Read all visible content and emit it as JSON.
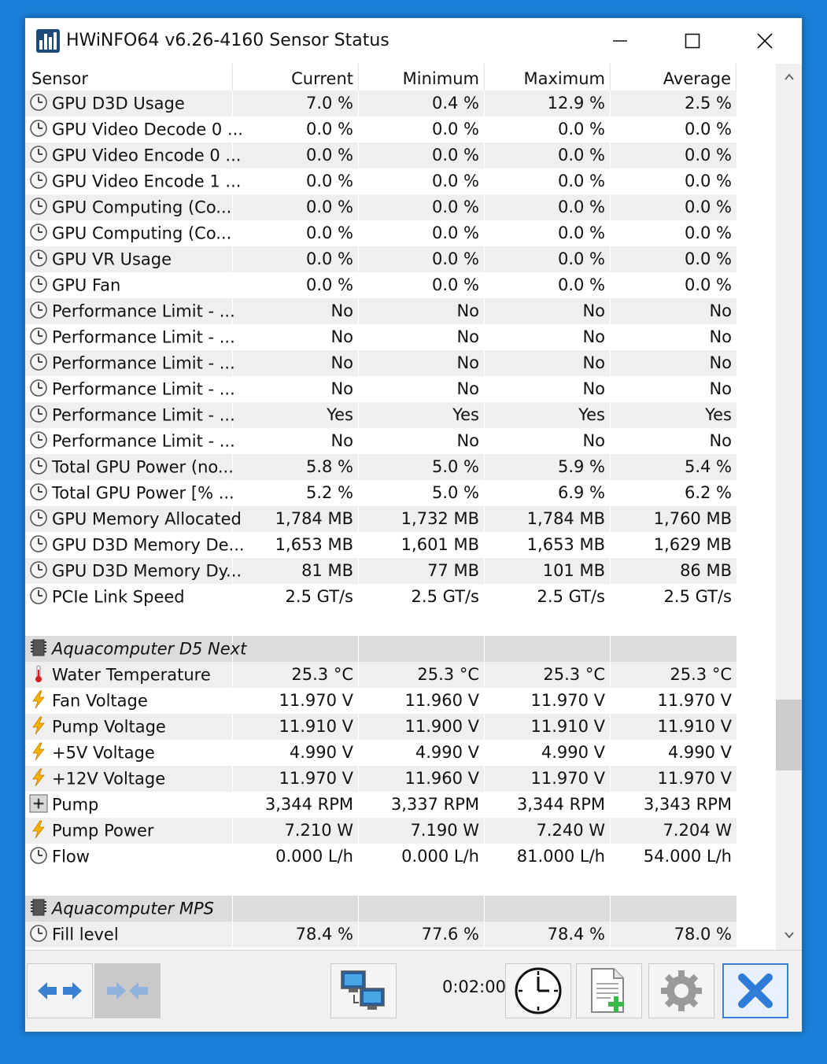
{
  "window": {
    "title": "HWiNFO64 v6.26-4160 Sensor Status"
  },
  "columns": [
    "Sensor",
    "Current",
    "Minimum",
    "Maximum",
    "Average"
  ],
  "rows": [
    {
      "type": "sensor",
      "icon": "clock-icon",
      "name": "GPU D3D Usage",
      "current": "7.0 %",
      "minimum": "0.4 %",
      "maximum": "12.9 %",
      "average": "2.5 %"
    },
    {
      "type": "sensor",
      "icon": "clock-icon",
      "name": "GPU Video Decode 0 ...",
      "current": "0.0 %",
      "minimum": "0.0 %",
      "maximum": "0.0 %",
      "average": "0.0 %"
    },
    {
      "type": "sensor",
      "icon": "clock-icon",
      "name": "GPU Video Encode 0 ...",
      "current": "0.0 %",
      "minimum": "0.0 %",
      "maximum": "0.0 %",
      "average": "0.0 %"
    },
    {
      "type": "sensor",
      "icon": "clock-icon",
      "name": "GPU Video Encode 1 ...",
      "current": "0.0 %",
      "minimum": "0.0 %",
      "maximum": "0.0 %",
      "average": "0.0 %"
    },
    {
      "type": "sensor",
      "icon": "clock-icon",
      "name": "GPU Computing (Co...",
      "current": "0.0 %",
      "minimum": "0.0 %",
      "maximum": "0.0 %",
      "average": "0.0 %"
    },
    {
      "type": "sensor",
      "icon": "clock-icon",
      "name": "GPU Computing (Co...",
      "current": "0.0 %",
      "minimum": "0.0 %",
      "maximum": "0.0 %",
      "average": "0.0 %"
    },
    {
      "type": "sensor",
      "icon": "clock-icon",
      "name": "GPU VR Usage",
      "current": "0.0 %",
      "minimum": "0.0 %",
      "maximum": "0.0 %",
      "average": "0.0 %"
    },
    {
      "type": "sensor",
      "icon": "clock-icon",
      "name": "GPU Fan",
      "current": "0.0 %",
      "minimum": "0.0 %",
      "maximum": "0.0 %",
      "average": "0.0 %"
    },
    {
      "type": "sensor",
      "icon": "clock-icon",
      "name": "Performance Limit - ...",
      "current": "No",
      "minimum": "No",
      "maximum": "No",
      "average": "No"
    },
    {
      "type": "sensor",
      "icon": "clock-icon",
      "name": "Performance Limit - ...",
      "current": "No",
      "minimum": "No",
      "maximum": "No",
      "average": "No"
    },
    {
      "type": "sensor",
      "icon": "clock-icon",
      "name": "Performance Limit - ...",
      "current": "No",
      "minimum": "No",
      "maximum": "No",
      "average": "No"
    },
    {
      "type": "sensor",
      "icon": "clock-icon",
      "name": "Performance Limit - ...",
      "current": "No",
      "minimum": "No",
      "maximum": "No",
      "average": "No"
    },
    {
      "type": "sensor",
      "icon": "clock-icon",
      "name": "Performance Limit - ...",
      "current": "Yes",
      "minimum": "Yes",
      "maximum": "Yes",
      "average": "Yes"
    },
    {
      "type": "sensor",
      "icon": "clock-icon",
      "name": "Performance Limit - ...",
      "current": "No",
      "minimum": "No",
      "maximum": "No",
      "average": "No"
    },
    {
      "type": "sensor",
      "icon": "clock-icon",
      "name": "Total GPU Power (no...",
      "current": "5.8 %",
      "minimum": "5.0 %",
      "maximum": "5.9 %",
      "average": "5.4 %"
    },
    {
      "type": "sensor",
      "icon": "clock-icon",
      "name": "Total GPU Power [% ...",
      "current": "5.2 %",
      "minimum": "5.0 %",
      "maximum": "6.9 %",
      "average": "6.2 %"
    },
    {
      "type": "sensor",
      "icon": "clock-icon",
      "name": "GPU Memory Allocated",
      "current": "1,784 MB",
      "minimum": "1,732 MB",
      "maximum": "1,784 MB",
      "average": "1,760 MB"
    },
    {
      "type": "sensor",
      "icon": "clock-icon",
      "name": "GPU D3D Memory De...",
      "current": "1,653 MB",
      "minimum": "1,601 MB",
      "maximum": "1,653 MB",
      "average": "1,629 MB"
    },
    {
      "type": "sensor",
      "icon": "clock-icon",
      "name": "GPU D3D Memory Dy...",
      "current": "81 MB",
      "minimum": "77 MB",
      "maximum": "101 MB",
      "average": "86 MB"
    },
    {
      "type": "sensor",
      "icon": "clock-icon",
      "name": "PCIe Link Speed",
      "current": "2.5 GT/s",
      "minimum": "2.5 GT/s",
      "maximum": "2.5 GT/s",
      "average": "2.5 GT/s"
    },
    {
      "type": "blank"
    },
    {
      "type": "group",
      "icon": "chip-icon",
      "name": "Aquacomputer D5 Next"
    },
    {
      "type": "sensor",
      "icon": "thermometer-icon",
      "name": "Water Temperature",
      "current": "25.3 °C",
      "minimum": "25.3 °C",
      "maximum": "25.3 °C",
      "average": "25.3 °C"
    },
    {
      "type": "sensor",
      "icon": "lightning-icon",
      "name": "Fan Voltage",
      "current": "11.970 V",
      "minimum": "11.960 V",
      "maximum": "11.970 V",
      "average": "11.970 V"
    },
    {
      "type": "sensor",
      "icon": "lightning-icon",
      "name": "Pump Voltage",
      "current": "11.910 V",
      "minimum": "11.900 V",
      "maximum": "11.910 V",
      "average": "11.910 V"
    },
    {
      "type": "sensor",
      "icon": "lightning-icon",
      "name": "+5V Voltage",
      "current": "4.990 V",
      "minimum": "4.990 V",
      "maximum": "4.990 V",
      "average": "4.990 V"
    },
    {
      "type": "sensor",
      "icon": "lightning-icon",
      "name": "+12V Voltage",
      "current": "11.970 V",
      "minimum": "11.960 V",
      "maximum": "11.970 V",
      "average": "11.970 V"
    },
    {
      "type": "sensor",
      "icon": "fan-icon",
      "name": "Pump",
      "current": "3,344 RPM",
      "minimum": "3,337 RPM",
      "maximum": "3,344 RPM",
      "average": "3,343 RPM"
    },
    {
      "type": "sensor",
      "icon": "lightning-icon",
      "name": "Pump Power",
      "current": "7.210 W",
      "minimum": "7.190 W",
      "maximum": "7.240 W",
      "average": "7.204 W"
    },
    {
      "type": "sensor",
      "icon": "clock-icon",
      "name": "Flow",
      "current": "0.000 L/h",
      "minimum": "0.000 L/h",
      "maximum": "81.000 L/h",
      "average": "54.000 L/h"
    },
    {
      "type": "blank"
    },
    {
      "type": "group",
      "icon": "chip-icon",
      "name": "Aquacomputer MPS"
    },
    {
      "type": "sensor",
      "icon": "clock-icon",
      "name": "Fill level",
      "current": "78.4 %",
      "minimum": "77.6 %",
      "maximum": "78.4 %",
      "average": "78.0 %"
    }
  ],
  "toolbar": {
    "timer": "0:02:00"
  }
}
